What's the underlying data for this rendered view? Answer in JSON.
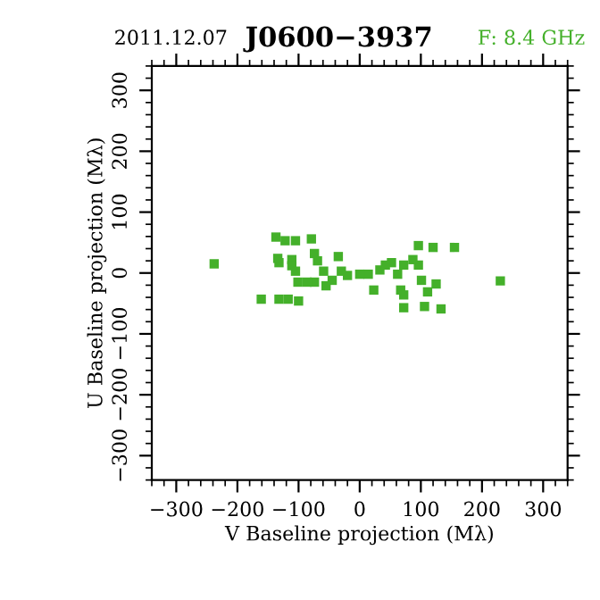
{
  "chart_data": {
    "type": "scatter",
    "title": "J0600−3937",
    "annotations": [
      "2011.12.07",
      "F: 8.4 GHz"
    ],
    "xlabel": "V Baseline projection (Mλ)",
    "ylabel": "U Baseline projection (Mλ)",
    "xlim": [
      -340,
      340
    ],
    "ylim": [
      -340,
      340
    ],
    "xticks": [
      {
        "value": -300,
        "label": "−300"
      },
      {
        "value": -200,
        "label": "−200"
      },
      {
        "value": -100,
        "label": "−100"
      },
      0,
      100,
      200,
      300
    ],
    "yticks": [
      {
        "value": -300,
        "label": "−300"
      },
      {
        "value": -200,
        "label": "−200"
      },
      {
        "value": -100,
        "label": "−100"
      },
      0,
      100,
      200,
      300
    ],
    "grid": false,
    "marker": "square",
    "series": [
      {
        "color": "#44b02a",
        "x": [
          -238,
          -137,
          -122,
          -105,
          -79,
          -132,
          -134,
          -111,
          -105,
          -74,
          -69,
          -59,
          -101,
          -74,
          -35,
          -20,
          14,
          33,
          52,
          72,
          96,
          96,
          120,
          155,
          101,
          125,
          111,
          23,
          67,
          72,
          72,
          106,
          133,
          230,
          -161,
          -132,
          -117,
          -100,
          -45,
          -55,
          62,
          87,
          -111,
          -86,
          0,
          -30,
          42
        ],
        "values": [
          15,
          59,
          53,
          53,
          56,
          17,
          24,
          22,
          3,
          32,
          20,
          3,
          -15,
          -15,
          27,
          -4,
          -2,
          5,
          17,
          13,
          13,
          45,
          42,
          42,
          -12,
          -18,
          -31,
          -28,
          -28,
          -36,
          -57,
          -55,
          -59,
          -13,
          -43,
          -43,
          -43,
          -46,
          -12,
          -21,
          -2,
          22,
          12,
          -15,
          -2,
          3,
          13
        ]
      }
    ]
  }
}
